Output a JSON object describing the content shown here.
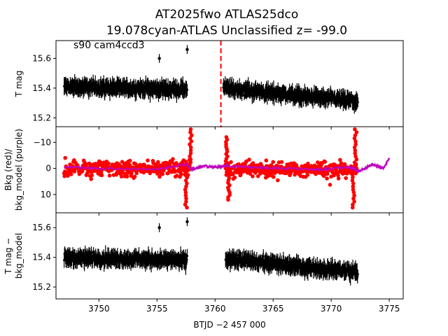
{
  "chart_data": [
    {
      "panel": "top",
      "type": "scatter",
      "title_line1": "AT2025fwo  ATLAS25dco",
      "title_line2": "19.078cyan-ATLAS Unclassified z= -99.0",
      "annotation": "s90 cam4ccd3",
      "ylabel": "T mag",
      "y_inverted": true,
      "yticks": [
        "15.2",
        "15.4",
        "15.6"
      ],
      "ylim": [
        15.72,
        15.14
      ],
      "xlim": [
        3746.3,
        3776.2
      ],
      "marker_vline_x": 3760.5,
      "marker_vline_style": "red dashed",
      "series": [
        {
          "color": "#000000",
          "segments": [
            {
              "x_range": [
                3747.0,
                3757.6
              ],
              "y_start": 15.41,
              "y_end": 15.39,
              "scatter": 0.06
            },
            {
              "x_range": [
                3760.7,
                3772.3
              ],
              "y_start": 15.4,
              "y_end": 15.31,
              "scatter": 0.06
            }
          ],
          "outliers": [
            {
              "x": 3755.2,
              "y": 15.6
            },
            {
              "x": 3757.6,
              "y": 15.66
            }
          ]
        }
      ]
    },
    {
      "panel": "middle",
      "type": "scatter",
      "ylabel_line1": "Bkg (red)/",
      "ylabel_line2": "bkg_model (purple)",
      "yticks": [
        "−10",
        "0",
        "10"
      ],
      "ylim": [
        -16,
        17
      ],
      "series": [
        {
          "color": "#ff0000",
          "segments": [
            {
              "x_range": [
                3747.0,
                3757.8
              ],
              "level": 0.0,
              "scatter": 3.5
            },
            {
              "x_range": [
                3760.9,
                3772.2
              ],
              "level": 0.5,
              "scatter": 3.5
            }
          ],
          "spikes": [
            {
              "x": 3757.5,
              "y": 15
            },
            {
              "x": 3757.9,
              "y": -15
            },
            {
              "x": 3761.0,
              "y": -12
            },
            {
              "x": 3761.2,
              "y": 12
            },
            {
              "x": 3771.9,
              "y": 15
            },
            {
              "x": 3772.1,
              "y": -15
            }
          ]
        },
        {
          "color": "#bf00bf",
          "model_points": [
            [
              3747.0,
              -0.5
            ],
            [
              3750.0,
              0.0
            ],
            [
              3755.0,
              0.3
            ],
            [
              3757.5,
              -1.5
            ],
            [
              3758.0,
              0.5
            ],
            [
              3759.0,
              -1.0
            ],
            [
              3760.0,
              -0.5
            ],
            [
              3761.0,
              -1.0
            ],
            [
              3763.0,
              -0.5
            ],
            [
              3766.0,
              0.0
            ],
            [
              3769.0,
              0.5
            ],
            [
              3771.5,
              -0.5
            ],
            [
              3772.5,
              1.0
            ],
            [
              3773.5,
              -1.5
            ],
            [
              3774.5,
              0.0
            ],
            [
              3775.0,
              -4.0
            ]
          ]
        }
      ]
    },
    {
      "panel": "bottom",
      "type": "scatter",
      "ylabel_line1": "T mag −",
      "ylabel_line2": "bkg_model",
      "y_inverted": true,
      "yticks": [
        "15.2",
        "15.4",
        "15.6"
      ],
      "ylim": [
        15.7,
        15.12
      ],
      "xlabel": "BTJD −2 457 000",
      "xticks": [
        "3750",
        "3755",
        "3760",
        "3765",
        "3770",
        "3775"
      ],
      "series": [
        {
          "color": "#000000",
          "segments": [
            {
              "x_range": [
                3747.0,
                3757.6
              ],
              "y_start": 15.4,
              "y_end": 15.38,
              "scatter": 0.06
            },
            {
              "x_range": [
                3760.9,
                3772.3
              ],
              "y_start": 15.39,
              "y_end": 15.3,
              "scatter": 0.06
            }
          ],
          "outliers": [
            {
              "x": 3755.2,
              "y": 15.6
            },
            {
              "x": 3757.6,
              "y": 15.64
            }
          ]
        }
      ]
    }
  ]
}
